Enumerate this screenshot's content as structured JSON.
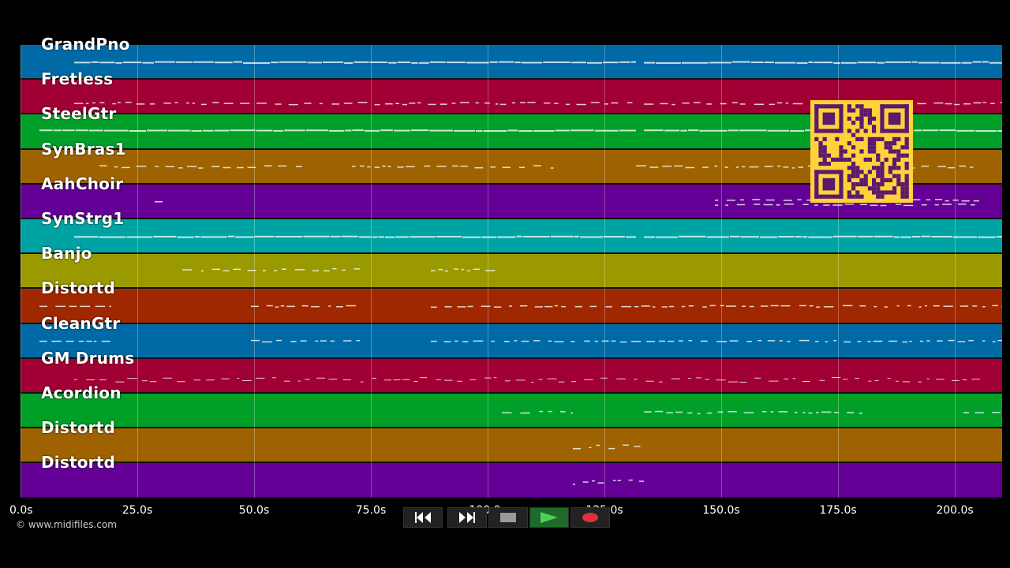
{
  "tracks": [
    {
      "name": "GrandPno",
      "color": "#006aa6"
    },
    {
      "name": "Fretless",
      "color": "#a00034"
    },
    {
      "name": "SteelGtr",
      "color": "#00a028"
    },
    {
      "name": "SynBras1",
      "color": "#9e6300"
    },
    {
      "name": "AahChoir",
      "color": "#640096"
    },
    {
      "name": "SynStrg1",
      "color": "#00a3a3"
    },
    {
      "name": "Banjo",
      "color": "#9a9a00"
    },
    {
      "name": "Distortd",
      "color": "#a02800"
    },
    {
      "name": "CleanGtr",
      "color": "#006aa6"
    },
    {
      "name": "GM Drums",
      "color": "#a00034"
    },
    {
      "name": "Acordion",
      "color": "#00a028"
    },
    {
      "name": "Distortd",
      "color": "#9e6300"
    },
    {
      "name": "Distortd",
      "color": "#640096"
    }
  ],
  "time_axis": {
    "ticks": [
      0,
      25,
      50,
      75,
      100,
      125,
      150,
      175,
      200
    ],
    "tick_labels": [
      "0.0s",
      "25.0s",
      "50.0s",
      "75.0s",
      "100.0s",
      "125.0s",
      "150.0s",
      "175.0s",
      "200.0s"
    ],
    "max_seconds": 210
  },
  "copyright": "© www.midifiles.com",
  "transport": {
    "buttons": [
      "rewind",
      "fast-forward",
      "stop",
      "play",
      "record"
    ]
  },
  "icons": {
    "rewind": "rewind-icon",
    "fast_forward": "fast-forward-icon",
    "stop": "stop-icon",
    "play": "play-icon",
    "record": "record-icon",
    "qr": "qr-code-icon"
  },
  "colors": {
    "background": "#000000",
    "qr_fg": "#5a1a6e",
    "qr_bg": "#ffd23a",
    "record": "#e0303a",
    "play": "#4cd05a"
  }
}
